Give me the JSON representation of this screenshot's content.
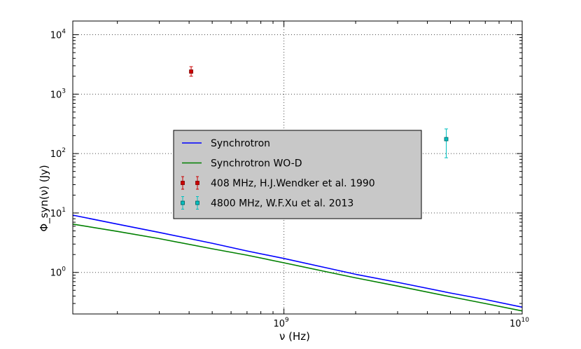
{
  "chart_data": {
    "type": "line",
    "xlabel": "ν   (Hz)",
    "ylabel": "Φ_syn(ν)   (Jy)",
    "xscale": "log",
    "yscale": "log",
    "xlim": [
      130000000,
      10000000000
    ],
    "ylim": [
      0.2,
      17000
    ],
    "grid": true,
    "legend_position": "center",
    "x_ticks": [
      {
        "base": "10",
        "exp": "9",
        "value": 1000000000
      },
      {
        "base": "10",
        "exp": "10",
        "value": 10000000000
      }
    ],
    "y_ticks": [
      {
        "base": "10",
        "exp": "0",
        "value": 1
      },
      {
        "base": "10",
        "exp": "1",
        "value": 10
      },
      {
        "base": "10",
        "exp": "2",
        "value": 100
      },
      {
        "base": "10",
        "exp": "3",
        "value": 1000
      },
      {
        "base": "10",
        "exp": "4",
        "value": 10000
      }
    ],
    "series": [
      {
        "name": "Synchrotron",
        "kind": "line",
        "color": "#0000ff",
        "x": [
          130000000,
          200000000,
          300000000,
          500000000,
          700000000,
          1000000000,
          1500000000,
          2000000000,
          3000000000,
          5000000000,
          7000000000,
          10000000000
        ],
        "y": [
          9.2,
          6.5,
          4.7,
          3.1,
          2.3,
          1.72,
          1.2,
          0.93,
          0.68,
          0.45,
          0.35,
          0.26
        ]
      },
      {
        "name": "Synchrotron WO-D",
        "kind": "line",
        "color": "#008000",
        "x": [
          130000000,
          200000000,
          300000000,
          500000000,
          700000000,
          1000000000,
          1500000000,
          2000000000,
          3000000000,
          5000000000,
          7000000000,
          10000000000
        ],
        "y": [
          6.5,
          4.9,
          3.7,
          2.5,
          1.95,
          1.45,
          1.03,
          0.81,
          0.59,
          0.39,
          0.3,
          0.225
        ]
      },
      {
        "name": "408 MHz,  H.J.Wendker et al. 1990",
        "kind": "errorbar",
        "color": "#cc0000",
        "edge": "#800000",
        "x": [
          408000000
        ],
        "y": [
          2400
        ],
        "yerr_low": [
          400
        ],
        "yerr_high": [
          500
        ]
      },
      {
        "name": "4800 MHz,  W.F.Xu et al. 2013",
        "kind": "errorbar",
        "color": "#00bfbf",
        "edge": "#006060",
        "x": [
          4800000000
        ],
        "y": [
          175
        ],
        "yerr_low": [
          90
        ],
        "yerr_high": [
          85
        ]
      }
    ]
  }
}
